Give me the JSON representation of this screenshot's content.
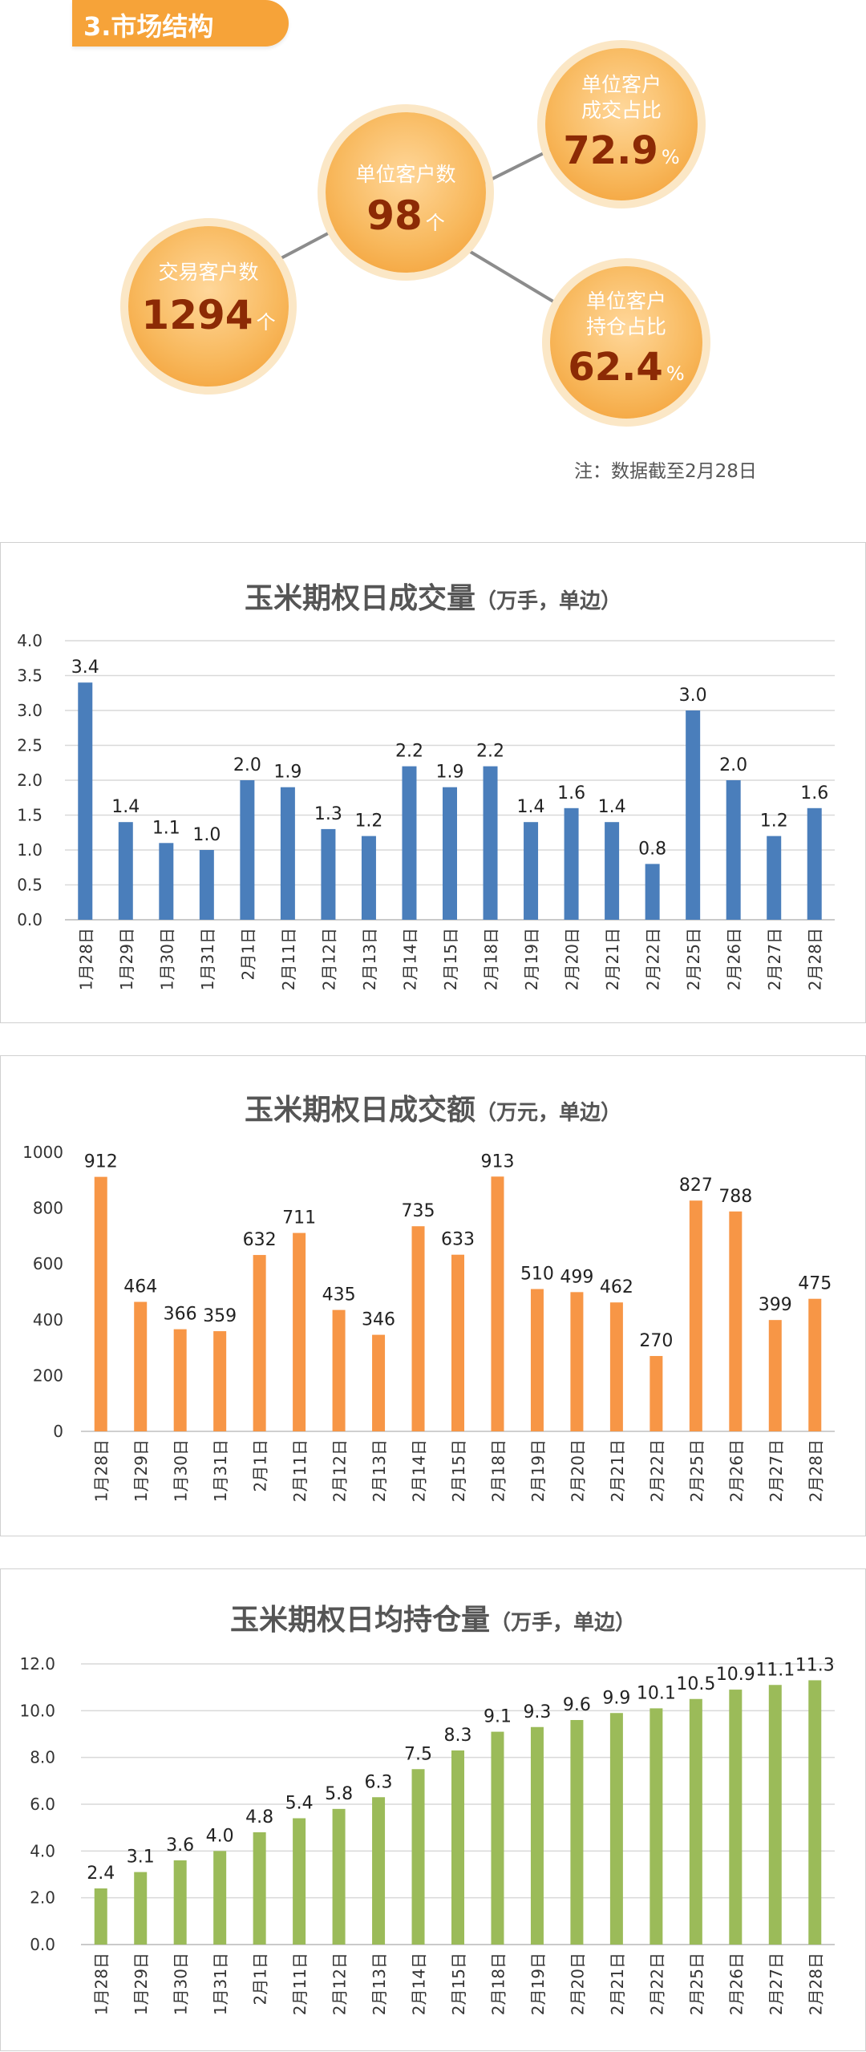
{
  "section": {
    "title": "3.市场结构"
  },
  "bubbles": {
    "traders": {
      "label": "交易客户数",
      "value": "1294",
      "unit": "个"
    },
    "institutions": {
      "label": "单位客户数",
      "value": "98",
      "unit": "个"
    },
    "volume_share": {
      "label_line1": "单位客户",
      "label_line2": "成交占比",
      "value": "72.9",
      "unit": "%"
    },
    "position_share": {
      "label_line1": "单位客户",
      "label_line2": "持仓占比",
      "value": "62.4",
      "unit": "%"
    }
  },
  "note": "注：数据截至2月28日",
  "colors": {
    "blue": "#4a7ebb",
    "orange": "#f79646",
    "green": "#9bbb59",
    "banner": "#f6a339"
  },
  "chart_data": [
    {
      "type": "bar",
      "title": "玉米期权日成交量",
      "subtitle": "（万手，单边）",
      "categories": [
        "1月28日",
        "1月29日",
        "1月30日",
        "1月31日",
        "2月1日",
        "2月11日",
        "2月12日",
        "2月13日",
        "2月14日",
        "2月15日",
        "2月18日",
        "2月19日",
        "2月20日",
        "2月21日",
        "2月22日",
        "2月25日",
        "2月26日",
        "2月27日",
        "2月28日"
      ],
      "values": [
        3.4,
        1.4,
        1.1,
        1.0,
        2.0,
        1.9,
        1.3,
        1.2,
        2.2,
        1.9,
        2.2,
        1.4,
        1.6,
        1.4,
        0.8,
        3.0,
        2.0,
        1.2,
        1.6
      ],
      "value_labels": [
        "3.4",
        "1.4",
        "1.1",
        "1.0",
        "2.0",
        "1.9",
        "1.3",
        "1.2",
        "2.2",
        "1.9",
        "2.2",
        "1.4",
        "1.6",
        "1.4",
        "0.8",
        "3.0",
        "2.0",
        "1.2",
        "1.6"
      ],
      "yticks": [
        "0.0",
        "0.5",
        "1.0",
        "1.5",
        "2.0",
        "2.5",
        "3.0",
        "3.5",
        "4.0"
      ],
      "ylim": [
        0,
        4
      ],
      "grid": true,
      "color": "#4a7ebb"
    },
    {
      "type": "bar",
      "title": "玉米期权日成交额",
      "subtitle": "（万元，单边）",
      "categories": [
        "1月28日",
        "1月29日",
        "1月30日",
        "1月31日",
        "2月1日",
        "2月11日",
        "2月12日",
        "2月13日",
        "2月14日",
        "2月15日",
        "2月18日",
        "2月19日",
        "2月20日",
        "2月21日",
        "2月22日",
        "2月25日",
        "2月26日",
        "2月27日",
        "2月28日"
      ],
      "values": [
        912,
        464,
        366,
        359,
        632,
        711,
        435,
        346,
        735,
        633,
        913,
        510,
        499,
        462,
        270,
        827,
        788,
        399,
        475
      ],
      "value_labels": [
        "912",
        "464",
        "366",
        "359",
        "632",
        "711",
        "435",
        "346",
        "735",
        "633",
        "913",
        "510",
        "499",
        "462",
        "270",
        "827",
        "788",
        "399",
        "475"
      ],
      "yticks": [
        "0",
        "200",
        "400",
        "600",
        "800",
        "1000"
      ],
      "ylim": [
        0,
        1000
      ],
      "grid": false,
      "color": "#f79646"
    },
    {
      "type": "bar",
      "title": "玉米期权日均持仓量",
      "subtitle": "（万手，单边）",
      "categories": [
        "1月28日",
        "1月29日",
        "1月30日",
        "1月31日",
        "2月1日",
        "2月11日",
        "2月12日",
        "2月13日",
        "2月14日",
        "2月15日",
        "2月18日",
        "2月19日",
        "2月20日",
        "2月21日",
        "2月22日",
        "2月25日",
        "2月26日",
        "2月27日",
        "2月28日"
      ],
      "values": [
        2.4,
        3.1,
        3.6,
        4.0,
        4.8,
        5.4,
        5.8,
        6.3,
        7.5,
        8.3,
        9.1,
        9.3,
        9.6,
        9.9,
        10.1,
        10.5,
        10.9,
        11.1,
        11.3
      ],
      "value_labels": [
        "2.4",
        "3.1",
        "3.6",
        "4.0",
        "4.8",
        "5.4",
        "5.8",
        "6.3",
        "7.5",
        "8.3",
        "9.1",
        "9.3",
        "9.6",
        "9.9",
        "10.1",
        "10.5",
        "10.9",
        "11.1",
        "11.3"
      ],
      "yticks": [
        "0.0",
        "2.0",
        "4.0",
        "6.0",
        "8.0",
        "10.0",
        "12.0"
      ],
      "ylim": [
        0,
        12
      ],
      "grid": true,
      "color": "#9bbb59"
    }
  ]
}
